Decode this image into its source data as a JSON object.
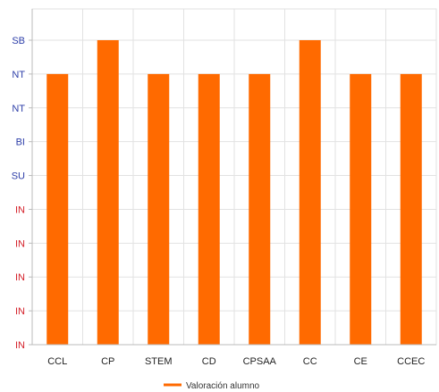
{
  "chart_data": {
    "type": "bar",
    "categories": [
      "CCL",
      "CP",
      "STEM",
      "CD",
      "CPSAA",
      "CC",
      "CE",
      "CCEC"
    ],
    "y_tick_labels": [
      "IN",
      "IN",
      "IN",
      "IN",
      "IN",
      "SU",
      "BI",
      "NT",
      "NT",
      "SB"
    ],
    "y_tick_colors": [
      "#d4202a",
      "#d4202a",
      "#d4202a",
      "#d4202a",
      "#d4202a",
      "#2d3ea8",
      "#2d3ea8",
      "#2d3ea8",
      "#2d3ea8",
      "#2d3ea8"
    ],
    "ylim": [
      0,
      9
    ],
    "series": [
      {
        "name": "Valoración alumno",
        "values": [
          8,
          9,
          8,
          8,
          8,
          9,
          8,
          8
        ],
        "color": "#ff6a00"
      }
    ],
    "legend_position": "bottom",
    "grid": true,
    "title": "",
    "xlabel": "",
    "ylabel": ""
  }
}
